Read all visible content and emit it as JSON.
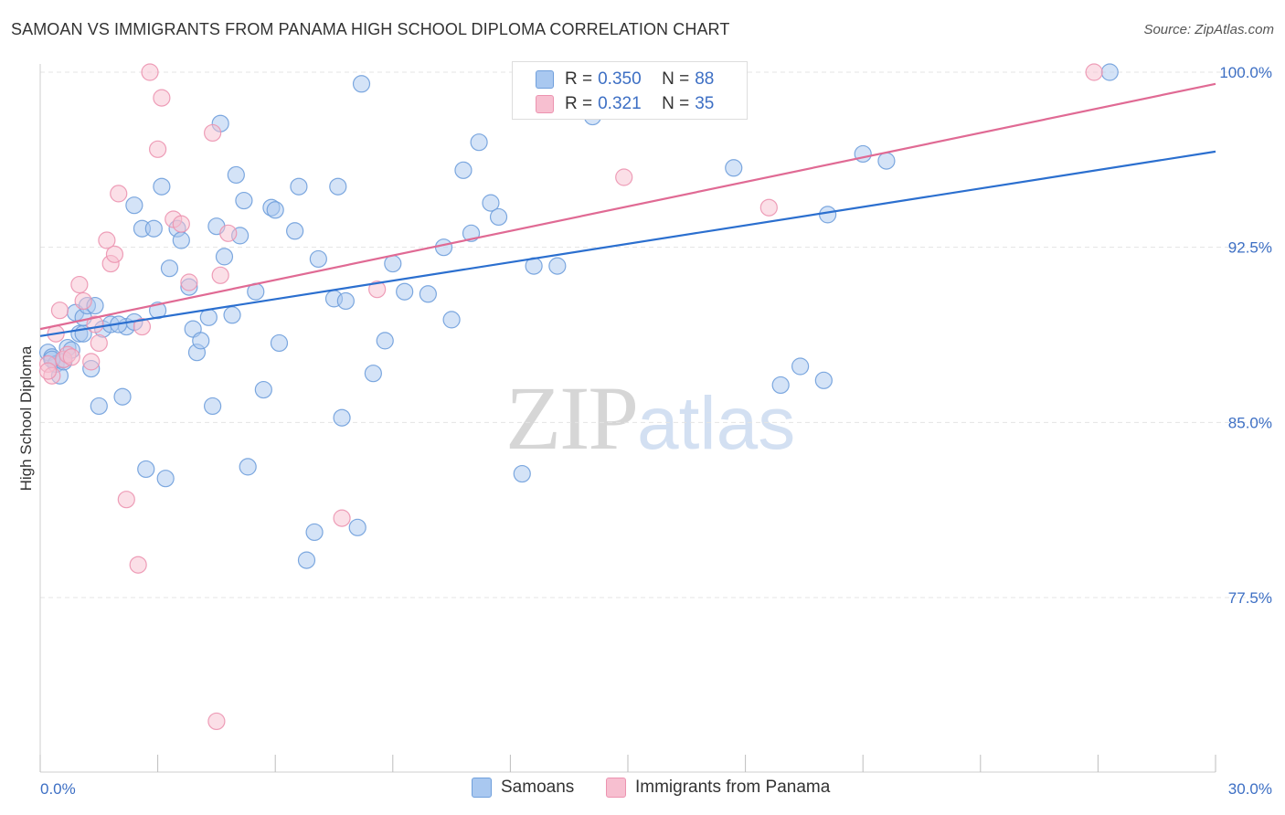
{
  "title": "SAMOAN VS IMMIGRANTS FROM PANAMA HIGH SCHOOL DIPLOMA CORRELATION CHART",
  "source": "Source: ZipAtlas.com",
  "watermark": {
    "zip": "ZIP",
    "atlas": "atlas"
  },
  "legend_top": {
    "r_label": "R =",
    "n_label": "N =",
    "rows": [
      {
        "r": "0.350",
        "n": "88"
      },
      {
        "r": "0.321",
        "n": "35"
      }
    ]
  },
  "colors": {
    "samoans_fill": "#a9c8f0",
    "samoans_stroke": "#6f9fdc",
    "samoans_line": "#2b6fcf",
    "panama_fill": "#f7bfd0",
    "panama_stroke": "#ec93b0",
    "panama_line": "#e06a94",
    "tick_text": "#3d6fc4",
    "grid": "#e4e4e4"
  },
  "chart_data": {
    "type": "scatter",
    "title": "SAMOAN VS IMMIGRANTS FROM PANAMA HIGH SCHOOL DIPLOMA CORRELATION CHART",
    "xlabel": "",
    "ylabel": "High School Diploma",
    "xlim": [
      0,
      30
    ],
    "ylim": [
      70.3,
      101.0
    ],
    "x_tick_labels": [
      "0.0%",
      "30.0%"
    ],
    "x_tick_label_values": [
      0,
      30
    ],
    "x_minor_ticks": [
      0,
      3,
      6,
      9,
      12,
      15,
      18,
      21,
      24,
      27,
      30
    ],
    "y_tick_labels": [
      "100.0%",
      "92.5%",
      "85.0%",
      "77.5%"
    ],
    "y_tick_values": [
      100.0,
      92.5,
      85.0,
      77.5
    ],
    "grid": true,
    "legend": "bottom-center",
    "series": [
      {
        "name": "Samoans",
        "r": 0.35,
        "n": 88,
        "trend": {
          "x": [
            0,
            30
          ],
          "y": [
            88.7,
            96.6
          ]
        },
        "points": [
          [
            0.2,
            88.0
          ],
          [
            0.3,
            87.8
          ],
          [
            0.4,
            87.5
          ],
          [
            0.5,
            87.0
          ],
          [
            0.6,
            87.6
          ],
          [
            0.7,
            88.2
          ],
          [
            0.8,
            88.1
          ],
          [
            0.9,
            89.7
          ],
          [
            1.0,
            88.8
          ],
          [
            1.1,
            89.5
          ],
          [
            1.2,
            90.0
          ],
          [
            1.3,
            87.3
          ],
          [
            1.4,
            90.0
          ],
          [
            1.5,
            85.7
          ],
          [
            1.6,
            89.0
          ],
          [
            1.8,
            89.2
          ],
          [
            2.1,
            86.1
          ],
          [
            2.2,
            89.1
          ],
          [
            2.4,
            89.3
          ],
          [
            2.4,
            94.3
          ],
          [
            2.6,
            93.3
          ],
          [
            2.7,
            83.0
          ],
          [
            2.9,
            93.3
          ],
          [
            3.0,
            89.8
          ],
          [
            3.1,
            95.1
          ],
          [
            3.2,
            82.6
          ],
          [
            3.3,
            91.6
          ],
          [
            3.5,
            93.3
          ],
          [
            3.6,
            92.8
          ],
          [
            3.8,
            90.8
          ],
          [
            3.9,
            89.0
          ],
          [
            4.0,
            88.0
          ],
          [
            4.1,
            88.5
          ],
          [
            4.3,
            89.5
          ],
          [
            4.4,
            85.7
          ],
          [
            4.5,
            93.4
          ],
          [
            4.6,
            97.8
          ],
          [
            4.7,
            92.1
          ],
          [
            4.9,
            89.6
          ],
          [
            5.0,
            95.6
          ],
          [
            5.1,
            93.0
          ],
          [
            5.2,
            94.5
          ],
          [
            5.3,
            83.1
          ],
          [
            5.5,
            90.6
          ],
          [
            5.7,
            86.4
          ],
          [
            5.9,
            94.2
          ],
          [
            6.0,
            94.1
          ],
          [
            6.1,
            88.4
          ],
          [
            6.5,
            93.2
          ],
          [
            6.6,
            95.1
          ],
          [
            6.8,
            79.1
          ],
          [
            7.0,
            80.3
          ],
          [
            7.1,
            92.0
          ],
          [
            7.5,
            90.3
          ],
          [
            7.6,
            95.1
          ],
          [
            7.7,
            85.2
          ],
          [
            7.8,
            90.2
          ],
          [
            8.1,
            80.5
          ],
          [
            8.2,
            99.5
          ],
          [
            8.5,
            87.1
          ],
          [
            8.8,
            88.5
          ],
          [
            9.0,
            91.8
          ],
          [
            9.3,
            90.6
          ],
          [
            9.9,
            90.5
          ],
          [
            10.3,
            92.5
          ],
          [
            10.5,
            89.4
          ],
          [
            10.8,
            95.8
          ],
          [
            11.0,
            93.1
          ],
          [
            11.2,
            97.0
          ],
          [
            11.5,
            94.4
          ],
          [
            11.7,
            93.8
          ],
          [
            12.3,
            82.8
          ],
          [
            12.6,
            91.7
          ],
          [
            13.2,
            91.7
          ],
          [
            14.1,
            98.1
          ],
          [
            14.8,
            100.0
          ],
          [
            17.7,
            95.9
          ],
          [
            18.9,
            86.6
          ],
          [
            19.4,
            87.4
          ],
          [
            20.0,
            86.8
          ],
          [
            20.1,
            93.9
          ],
          [
            21.0,
            96.5
          ],
          [
            21.6,
            96.2
          ],
          [
            27.3,
            100.0
          ],
          [
            0.3,
            87.7
          ],
          [
            0.6,
            87.7
          ],
          [
            1.1,
            88.8
          ],
          [
            2.0,
            89.2
          ]
        ]
      },
      {
        "name": "Immigrants from Panama",
        "r": 0.321,
        "n": 35,
        "trend": {
          "x": [
            0,
            30
          ],
          "y": [
            89.0,
            99.5
          ]
        },
        "points": [
          [
            0.2,
            87.5
          ],
          [
            0.3,
            87.0
          ],
          [
            0.4,
            88.8
          ],
          [
            0.5,
            89.8
          ],
          [
            0.6,
            87.7
          ],
          [
            0.7,
            87.9
          ],
          [
            0.8,
            87.8
          ],
          [
            1.0,
            90.9
          ],
          [
            1.1,
            90.2
          ],
          [
            1.3,
            87.6
          ],
          [
            1.4,
            89.2
          ],
          [
            1.5,
            88.4
          ],
          [
            1.7,
            92.8
          ],
          [
            1.8,
            91.8
          ],
          [
            1.9,
            92.2
          ],
          [
            2.0,
            94.8
          ],
          [
            2.2,
            81.7
          ],
          [
            2.5,
            78.9
          ],
          [
            2.6,
            89.1
          ],
          [
            2.8,
            100.0
          ],
          [
            3.0,
            96.7
          ],
          [
            3.1,
            98.9
          ],
          [
            3.4,
            93.7
          ],
          [
            3.6,
            93.5
          ],
          [
            3.8,
            91.0
          ],
          [
            4.4,
            97.4
          ],
          [
            4.5,
            72.2
          ],
          [
            4.6,
            91.3
          ],
          [
            4.8,
            93.1
          ],
          [
            7.7,
            80.9
          ],
          [
            8.6,
            90.7
          ],
          [
            14.9,
            95.5
          ],
          [
            18.6,
            94.2
          ],
          [
            26.9,
            100.0
          ],
          [
            0.2,
            87.2
          ]
        ]
      }
    ]
  },
  "legend_bottom": [
    {
      "label": "Samoans"
    },
    {
      "label": "Immigrants from Panama"
    }
  ]
}
